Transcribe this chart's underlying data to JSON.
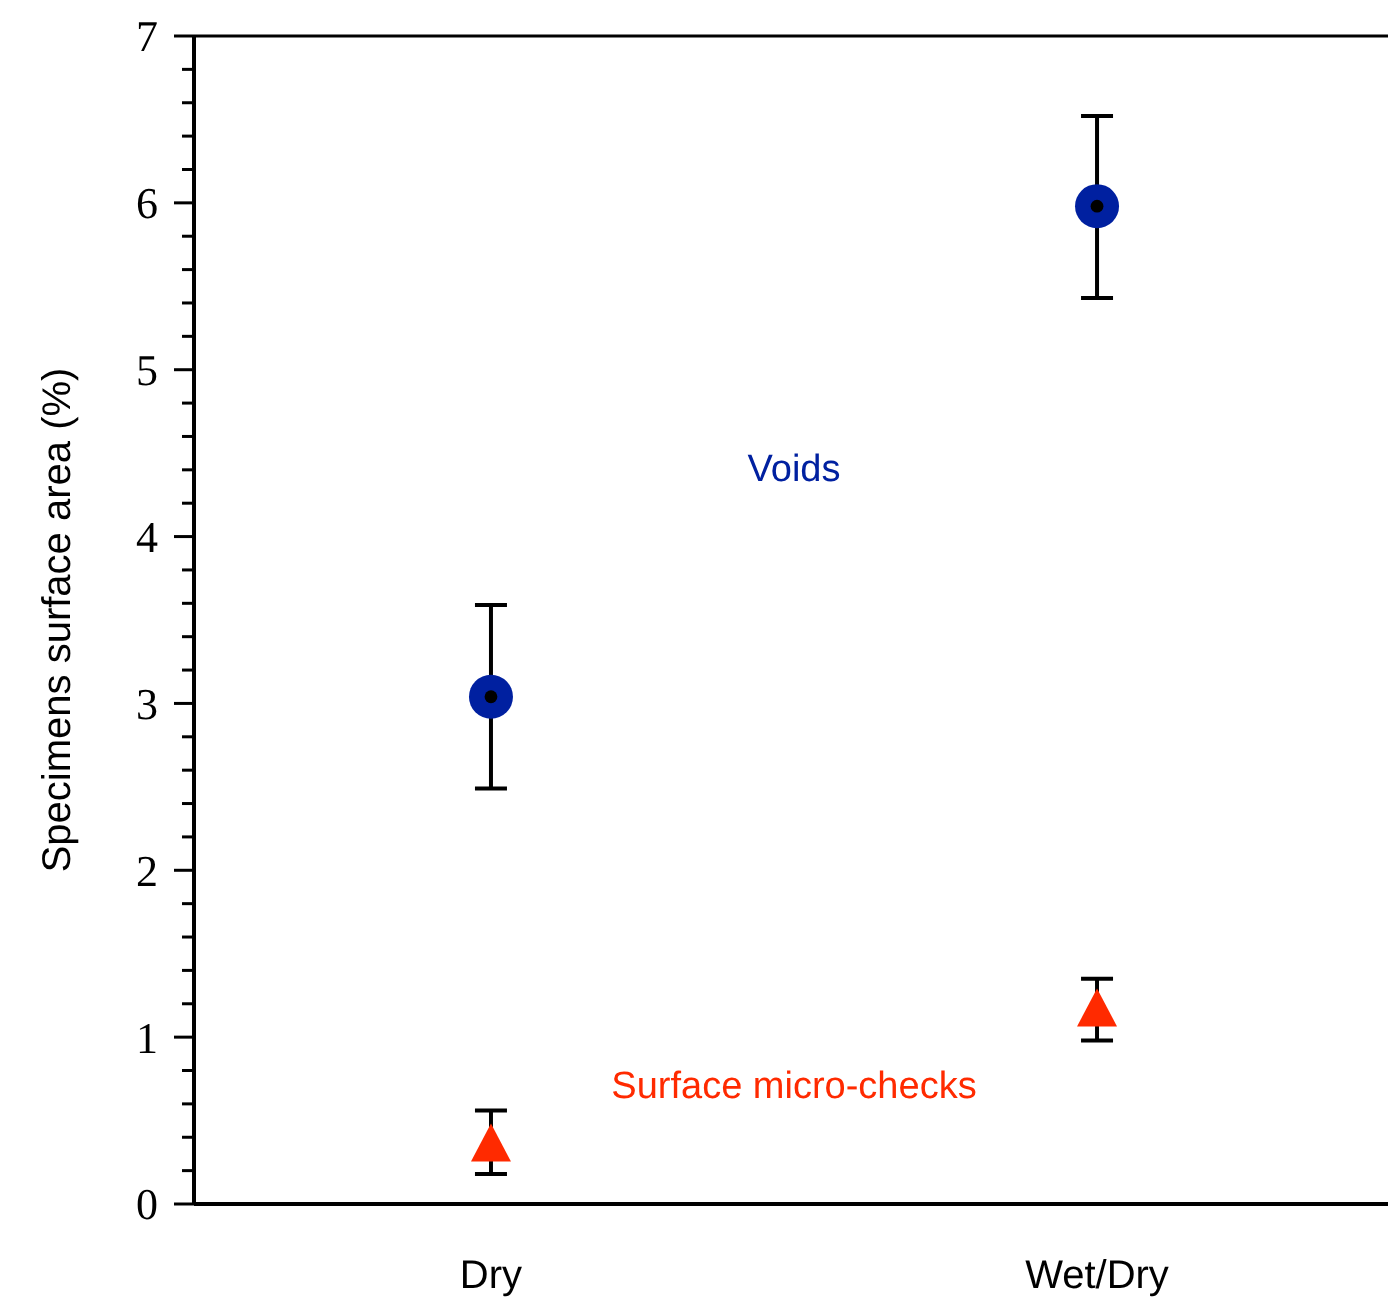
{
  "chart_data": {
    "type": "scatter",
    "ylabel": "Specimens surface area (%)",
    "categories": [
      "Dry",
      "Wet/Dry"
    ],
    "series": [
      {
        "name": "Voids",
        "color": "#0020a0",
        "marker": "circle",
        "values": [
          3.04,
          5.98
        ],
        "errors": [
          [
            2.49,
            3.59
          ],
          [
            5.43,
            6.52
          ]
        ]
      },
      {
        "name": "Surface micro-checks",
        "color": "#ff2a00",
        "marker": "triangle",
        "values": [
          0.35,
          1.16
        ],
        "errors": [
          [
            0.18,
            0.56
          ],
          [
            0.98,
            1.35
          ]
        ]
      }
    ],
    "ylim": [
      0,
      7
    ],
    "yticks": [
      0,
      {
        "value": 0.2,
        "label": null
      },
      {
        "value": 0.4,
        "label": null
      },
      {
        "value": 0.6,
        "label": null
      },
      {
        "value": 0.8,
        "label": null
      },
      1,
      {
        "value": 1.2,
        "label": null
      },
      {
        "value": 1.4,
        "label": null
      },
      {
        "value": 1.6,
        "label": null
      },
      {
        "value": 1.8,
        "label": null
      },
      2,
      {
        "value": 2.2,
        "label": null
      },
      {
        "value": 2.4,
        "label": null
      },
      {
        "value": 2.6,
        "label": null
      },
      {
        "value": 2.8,
        "label": null
      },
      3,
      {
        "value": 3.2,
        "label": null
      },
      {
        "value": 3.4,
        "label": null
      },
      {
        "value": 3.6,
        "label": null
      },
      {
        "value": 3.8,
        "label": null
      },
      4,
      {
        "value": 4.2,
        "label": null
      },
      {
        "value": 4.4,
        "label": null
      },
      {
        "value": 4.6,
        "label": null
      },
      {
        "value": 4.8,
        "label": null
      },
      5,
      {
        "value": 5.2,
        "label": null
      },
      {
        "value": 5.4,
        "label": null
      },
      {
        "value": 5.6,
        "label": null
      },
      {
        "value": 5.8,
        "label": null
      },
      6,
      {
        "value": 6.2,
        "label": null
      },
      {
        "value": 6.4,
        "label": null
      },
      {
        "value": 6.6,
        "label": null
      },
      {
        "value": 6.8,
        "label": null
      },
      7
    ],
    "grid": false
  }
}
